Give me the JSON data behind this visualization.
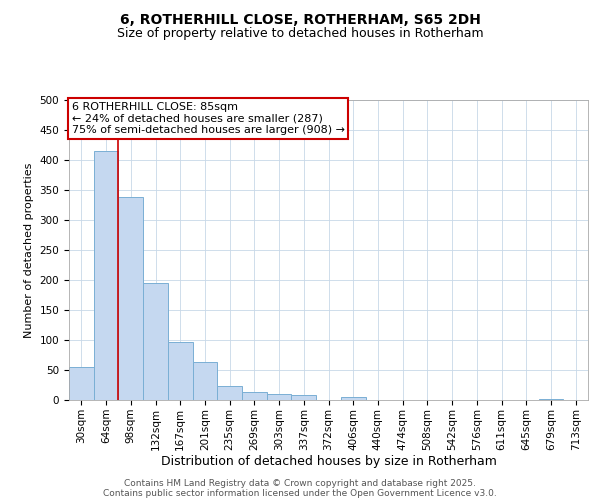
{
  "title1": "6, ROTHERHILL CLOSE, ROTHERHAM, S65 2DH",
  "title2": "Size of property relative to detached houses in Rotherham",
  "xlabel": "Distribution of detached houses by size in Rotherham",
  "ylabel": "Number of detached properties",
  "categories": [
    "30sqm",
    "64sqm",
    "98sqm",
    "132sqm",
    "167sqm",
    "201sqm",
    "235sqm",
    "269sqm",
    "303sqm",
    "337sqm",
    "372sqm",
    "406sqm",
    "440sqm",
    "474sqm",
    "508sqm",
    "542sqm",
    "576sqm",
    "611sqm",
    "645sqm",
    "679sqm",
    "713sqm"
  ],
  "values": [
    55,
    415,
    338,
    195,
    97,
    63,
    24,
    14,
    10,
    9,
    0,
    5,
    0,
    0,
    0,
    0,
    0,
    0,
    0,
    1,
    0
  ],
  "bar_color": "#c5d8f0",
  "bar_edge_color": "#7aafd4",
  "red_line_x": 1.5,
  "annotation_line1": "6 ROTHERHILL CLOSE: 85sqm",
  "annotation_line2": "← 24% of detached houses are smaller (287)",
  "annotation_line3": "75% of semi-detached houses are larger (908) →",
  "annotation_box_color": "#cc0000",
  "ylim": [
    0,
    500
  ],
  "yticks": [
    0,
    50,
    100,
    150,
    200,
    250,
    300,
    350,
    400,
    450,
    500
  ],
  "footer1": "Contains HM Land Registry data © Crown copyright and database right 2025.",
  "footer2": "Contains public sector information licensed under the Open Government Licence v3.0.",
  "background_color": "#ffffff",
  "plot_bg_color": "#ffffff",
  "grid_color": "#c8d8e8",
  "title1_fontsize": 10,
  "title2_fontsize": 9,
  "xlabel_fontsize": 9,
  "ylabel_fontsize": 8,
  "tick_fontsize": 7.5,
  "footer_fontsize": 6.5,
  "ann_fontsize": 8
}
